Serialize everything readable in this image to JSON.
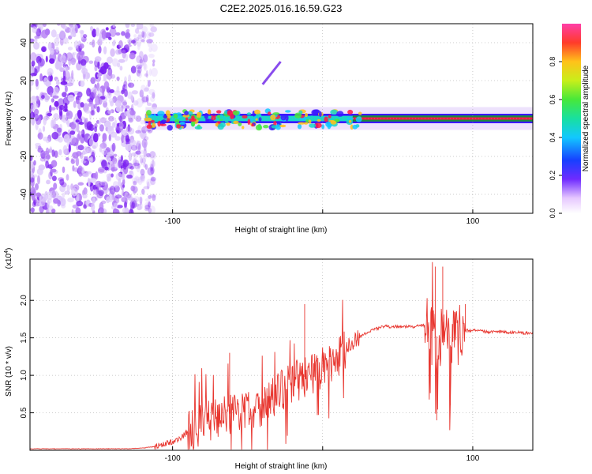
{
  "figure": {
    "title": "C2E2.2025.016.16.59.G23"
  },
  "chart_data": [
    {
      "type": "heatmap",
      "xlabel": "Height of straight line (km)",
      "ylabel": "Frequency (Hz)",
      "xlim": [
        -195,
        140
      ],
      "ylim": [
        -50,
        50
      ],
      "xticks": [
        -100,
        0,
        100
      ],
      "xtick_labels": [
        "-100",
        "",
        "100"
      ],
      "yticks": [
        -40,
        -20,
        0,
        20,
        40
      ],
      "ytick_labels": [
        "-40",
        "-20",
        "0",
        "20",
        "40"
      ],
      "grid": true,
      "colorbar": {
        "label": "Normalized spectral amplitude",
        "ticks": [
          0.0,
          0.2,
          0.4,
          0.6,
          0.8
        ],
        "tick_labels": [
          "0.0",
          "0.2",
          "0.4",
          "0.6",
          "0.8"
        ],
        "range": [
          0,
          1
        ]
      },
      "features": {
        "noise_region_x": [
          -195,
          -118
        ],
        "signal_band": {
          "x_start": -118,
          "x_end": 140,
          "center_hz": 0,
          "half_width_hz": 4
        },
        "secondary_trace": {
          "x": [
            -40,
            -28
          ],
          "y": [
            18,
            30
          ]
        }
      },
      "colors": {
        "noise": "#9a4bef",
        "low": "#3a17ff",
        "mid": "#17d6c8",
        "high": "#ff1744",
        "background": "#ffffff"
      }
    },
    {
      "type": "line",
      "xlabel": "Height of straight line (km)",
      "ylabel": "SNR (10 * v/v)",
      "yscale_label": "(x10",
      "yscale_exp": "4",
      "xlim": [
        -195,
        140
      ],
      "ylim": [
        0,
        2.55
      ],
      "xticks": [
        -100,
        0,
        100
      ],
      "xtick_labels": [
        "-100",
        "",
        "100"
      ],
      "yticks": [
        0.5,
        1.0,
        1.5,
        2.0
      ],
      "ytick_labels": [
        "0.5",
        "1.0",
        "1.5",
        "2.0"
      ],
      "grid": true,
      "series": [
        {
          "color": "#e8362f",
          "x": [
            -195,
            -130,
            -120,
            -112,
            -105,
            -100,
            -95,
            -90,
            -80,
            -70,
            -60,
            -50,
            -40,
            -30,
            -20,
            -10,
            0,
            10,
            20,
            30,
            40,
            50,
            60,
            65,
            70,
            75,
            80,
            85,
            90,
            95,
            100,
            110,
            120,
            130,
            140
          ],
          "y": [
            0.02,
            0.02,
            0.03,
            0.05,
            0.08,
            0.12,
            0.15,
            0.25,
            0.35,
            0.45,
            0.5,
            0.55,
            0.6,
            0.75,
            0.9,
            1.0,
            1.1,
            1.25,
            1.45,
            1.58,
            1.65,
            1.65,
            1.65,
            1.66,
            1.67,
            1.5,
            1.6,
            1.4,
            1.55,
            1.6,
            1.6,
            1.58,
            1.58,
            1.57,
            1.56
          ]
        }
      ]
    }
  ]
}
